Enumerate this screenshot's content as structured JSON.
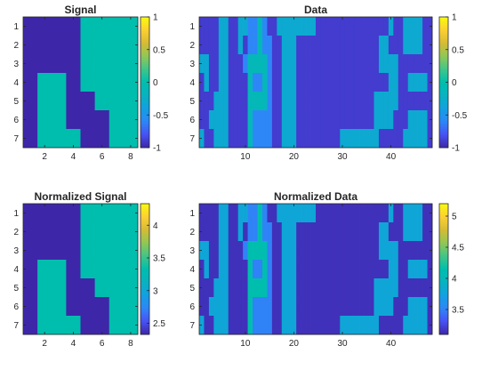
{
  "figure": {
    "background": "#ffffff",
    "colormap": "parula"
  },
  "chart_data": [
    {
      "type": "heatmap",
      "title": "Signal",
      "xticks": [
        2,
        4,
        6,
        8
      ],
      "yticks": [
        1,
        2,
        3,
        4,
        5,
        6,
        7
      ],
      "xlim": [
        0.5,
        8.5
      ],
      "ylim": [
        0.5,
        7.5
      ],
      "clim": [
        -1,
        1
      ],
      "colorbar_ticks": [
        1,
        0.5,
        0,
        -0.5,
        -1
      ],
      "z": [
        [
          -1,
          -1,
          -1,
          -1,
          0,
          0,
          0,
          0
        ],
        [
          -1,
          -1,
          -1,
          -1,
          0,
          0,
          0,
          0
        ],
        [
          -1,
          -1,
          -1,
          -1,
          0,
          0,
          0,
          0
        ],
        [
          -1,
          0,
          0,
          -1,
          0,
          0,
          0,
          0
        ],
        [
          -1,
          0,
          0,
          -1,
          -1,
          0,
          0,
          0
        ],
        [
          -1,
          0,
          0,
          -1,
          -1,
          -1,
          0,
          0
        ],
        [
          -1,
          0,
          0,
          0,
          -1,
          -1,
          0,
          0
        ]
      ]
    },
    {
      "type": "heatmap",
      "title": "Data",
      "xticks": [
        10,
        20,
        30,
        40
      ],
      "yticks": [
        1,
        2,
        3,
        4,
        5,
        6,
        7
      ],
      "xlim": [
        0.5,
        48.5
      ],
      "ylim": [
        0.5,
        7.5
      ],
      "clim": [
        -1,
        1
      ],
      "colorbar_ticks": [
        1,
        0.5,
        0,
        -0.5,
        -1
      ],
      "z": [
        [
          -0.9,
          -0.9,
          -0.9,
          -0.9,
          -0.3,
          -0.3,
          -0.9,
          -0.9,
          -0.3,
          -0.3,
          -0.6,
          -0.6,
          -0.1,
          -0.6,
          -0.9,
          -0.9,
          -0.3,
          -0.3,
          -0.3,
          -0.3,
          -0.3,
          -0.3,
          -0.3,
          -0.3,
          -0.9,
          -0.9,
          -0.9,
          -0.9,
          -0.9,
          -0.9,
          -0.9,
          -0.9,
          -0.9,
          -0.9,
          -0.9,
          -0.9,
          -0.9,
          -0.9,
          -0.9,
          -0.3,
          -0.9,
          -0.9,
          -0.3,
          -0.3,
          -0.3,
          -0.3,
          -0.9,
          -0.9
        ],
        [
          -0.9,
          -0.9,
          -0.9,
          -0.9,
          -0.3,
          -0.3,
          -0.9,
          -0.9,
          -0.3,
          -0.9,
          -0.6,
          -0.6,
          -0.1,
          -0.6,
          -0.6,
          -0.9,
          -0.9,
          -0.3,
          -0.3,
          -0.3,
          -0.9,
          -0.9,
          -0.9,
          -0.9,
          -0.9,
          -0.9,
          -0.9,
          -0.9,
          -0.9,
          -0.9,
          -0.9,
          -0.9,
          -0.9,
          -0.9,
          -0.9,
          -0.9,
          -0.9,
          -0.3,
          -0.3,
          -0.9,
          -0.9,
          -0.9,
          -0.3,
          -0.3,
          -0.3,
          -0.3,
          -0.9,
          -0.9
        ],
        [
          -0.3,
          -0.3,
          -0.9,
          -0.9,
          -0.3,
          -0.3,
          -0.9,
          -0.9,
          -0.9,
          -0.6,
          -0.1,
          -0.1,
          -0.1,
          -0.1,
          -0.6,
          -0.9,
          -0.9,
          -0.3,
          -0.3,
          -0.3,
          -0.9,
          -0.9,
          -0.9,
          -0.9,
          -0.9,
          -0.9,
          -0.9,
          -0.9,
          -0.9,
          -0.9,
          -0.9,
          -0.9,
          -0.9,
          -0.9,
          -0.9,
          -0.9,
          -0.9,
          -0.3,
          -0.3,
          -0.3,
          -0.3,
          -0.9,
          -0.9,
          -0.9,
          -0.9,
          -0.9,
          -0.9,
          -0.9
        ],
        [
          -0.9,
          -0.3,
          -0.9,
          -0.9,
          -0.3,
          -0.3,
          -0.9,
          -0.9,
          -0.9,
          -0.9,
          -0.1,
          -0.6,
          -0.6,
          -0.1,
          -0.6,
          -0.9,
          -0.9,
          -0.3,
          -0.3,
          -0.3,
          -0.9,
          -0.9,
          -0.9,
          -0.9,
          -0.9,
          -0.9,
          -0.9,
          -0.9,
          -0.9,
          -0.9,
          -0.9,
          -0.9,
          -0.9,
          -0.9,
          -0.9,
          -0.9,
          -0.9,
          -0.9,
          -0.9,
          -0.3,
          -0.3,
          -0.9,
          -0.9,
          -0.3,
          -0.3,
          -0.3,
          -0.3,
          -0.9
        ],
        [
          -0.9,
          -0.9,
          -0.9,
          -0.3,
          -0.3,
          -0.3,
          -0.9,
          -0.9,
          -0.9,
          -0.9,
          -0.1,
          -0.1,
          -0.1,
          -0.1,
          -0.6,
          -0.9,
          -0.9,
          -0.3,
          -0.3,
          -0.3,
          -0.9,
          -0.9,
          -0.9,
          -0.9,
          -0.9,
          -0.9,
          -0.9,
          -0.9,
          -0.9,
          -0.9,
          -0.9,
          -0.9,
          -0.9,
          -0.9,
          -0.9,
          -0.9,
          -0.3,
          -0.3,
          -0.3,
          -0.3,
          -0.3,
          -0.9,
          -0.9,
          -0.9,
          -0.9,
          -0.9,
          -0.9,
          -0.9
        ],
        [
          -0.9,
          -0.9,
          -0.3,
          -0.3,
          -0.3,
          -0.3,
          -0.9,
          -0.9,
          -0.9,
          -0.9,
          -0.1,
          -0.6,
          -0.6,
          -0.6,
          -0.6,
          -0.9,
          -0.9,
          -0.3,
          -0.3,
          -0.3,
          -0.9,
          -0.9,
          -0.9,
          -0.9,
          -0.9,
          -0.9,
          -0.9,
          -0.9,
          -0.9,
          -0.9,
          -0.9,
          -0.9,
          -0.9,
          -0.9,
          -0.9,
          -0.9,
          -0.3,
          -0.3,
          -0.3,
          -0.3,
          -0.9,
          -0.9,
          -0.9,
          -0.3,
          -0.3,
          -0.3,
          -0.3,
          -0.9
        ],
        [
          -0.3,
          -0.9,
          -0.9,
          -0.3,
          -0.3,
          -0.3,
          -0.9,
          -0.9,
          -0.9,
          -0.9,
          -0.1,
          -0.6,
          -0.6,
          -0.6,
          -0.6,
          -0.9,
          -0.9,
          -0.3,
          -0.3,
          -0.3,
          -0.9,
          -0.9,
          -0.9,
          -0.9,
          -0.9,
          -0.9,
          -0.9,
          -0.9,
          -0.9,
          -0.3,
          -0.3,
          -0.3,
          -0.3,
          -0.3,
          -0.3,
          -0.3,
          -0.3,
          -0.9,
          -0.9,
          -0.9,
          -0.9,
          -0.9,
          -0.3,
          -0.3,
          -0.3,
          -0.3,
          -0.3,
          -0.9
        ]
      ]
    },
    {
      "type": "heatmap",
      "title": "Normalized Signal",
      "xticks": [
        2,
        4,
        6,
        8
      ],
      "yticks": [
        1,
        2,
        3,
        4,
        5,
        6,
        7
      ],
      "xlim": [
        0.5,
        8.5
      ],
      "ylim": [
        0.5,
        7.5
      ],
      "clim": [
        2.33,
        4.33
      ],
      "colorbar_ticks": [
        4,
        3.5,
        3,
        2.5
      ],
      "z": [
        [
          2.33,
          2.33,
          2.33,
          2.33,
          3.33,
          3.33,
          3.33,
          3.33
        ],
        [
          2.33,
          2.33,
          2.33,
          2.33,
          3.33,
          3.33,
          3.33,
          3.33
        ],
        [
          2.33,
          2.33,
          2.33,
          2.33,
          3.33,
          3.33,
          3.33,
          3.33
        ],
        [
          2.33,
          3.33,
          3.33,
          2.33,
          3.33,
          3.33,
          3.33,
          3.33
        ],
        [
          2.33,
          3.33,
          3.33,
          2.33,
          2.33,
          3.33,
          3.33,
          3.33
        ],
        [
          2.33,
          3.33,
          3.33,
          2.33,
          2.33,
          2.33,
          3.33,
          3.33
        ],
        [
          2.33,
          3.33,
          3.33,
          3.33,
          2.33,
          2.33,
          3.33,
          3.33
        ]
      ]
    },
    {
      "type": "heatmap",
      "title": "Normalized Data",
      "xticks": [
        10,
        20,
        30,
        40
      ],
      "yticks": [
        1,
        2,
        3,
        4,
        5,
        6,
        7
      ],
      "xlim": [
        0.5,
        48.5
      ],
      "ylim": [
        0.5,
        7.5
      ],
      "clim": [
        3.1,
        5.2
      ],
      "colorbar_ticks": [
        5,
        4.5,
        4,
        3.5
      ],
      "z": [
        [
          3.15,
          3.15,
          3.15,
          3.15,
          3.8,
          3.8,
          3.15,
          3.15,
          3.8,
          3.8,
          3.5,
          3.5,
          4.15,
          3.5,
          3.15,
          3.15,
          3.8,
          3.8,
          3.8,
          3.8,
          3.8,
          3.8,
          3.8,
          3.8,
          3.15,
          3.15,
          3.15,
          3.15,
          3.15,
          3.15,
          3.15,
          3.15,
          3.15,
          3.15,
          3.15,
          3.15,
          3.15,
          3.15,
          3.15,
          3.8,
          3.15,
          3.15,
          3.8,
          3.8,
          3.8,
          3.8,
          3.15,
          3.15
        ],
        [
          3.15,
          3.15,
          3.15,
          3.15,
          3.8,
          3.8,
          3.15,
          3.15,
          3.8,
          3.15,
          3.5,
          3.5,
          4.15,
          3.5,
          3.5,
          3.15,
          3.15,
          3.8,
          3.8,
          3.8,
          3.15,
          3.15,
          3.15,
          3.15,
          3.15,
          3.15,
          3.15,
          3.15,
          3.15,
          3.15,
          3.15,
          3.15,
          3.15,
          3.15,
          3.15,
          3.15,
          3.15,
          3.8,
          3.8,
          3.15,
          3.15,
          3.15,
          3.8,
          3.8,
          3.8,
          3.8,
          3.15,
          3.15
        ],
        [
          3.8,
          3.8,
          3.15,
          3.15,
          3.8,
          3.8,
          3.15,
          3.15,
          3.15,
          3.5,
          4.15,
          4.15,
          4.15,
          4.15,
          3.5,
          3.15,
          3.15,
          3.8,
          3.8,
          3.8,
          3.15,
          3.15,
          3.15,
          3.15,
          3.15,
          3.15,
          3.15,
          3.15,
          3.15,
          3.15,
          3.15,
          3.15,
          3.15,
          3.15,
          3.15,
          3.15,
          3.15,
          3.8,
          3.8,
          3.8,
          3.8,
          3.15,
          3.15,
          3.15,
          3.15,
          3.15,
          3.15,
          3.15
        ],
        [
          3.15,
          3.8,
          3.15,
          3.15,
          3.8,
          3.8,
          3.15,
          3.15,
          3.15,
          3.15,
          4.15,
          3.5,
          3.5,
          4.15,
          3.5,
          3.15,
          3.15,
          3.8,
          3.8,
          3.8,
          3.15,
          3.15,
          3.15,
          3.15,
          3.15,
          3.15,
          3.15,
          3.15,
          3.15,
          3.15,
          3.15,
          3.15,
          3.15,
          3.15,
          3.15,
          3.15,
          3.15,
          3.15,
          3.15,
          3.8,
          3.8,
          3.15,
          3.15,
          3.8,
          3.8,
          3.8,
          3.8,
          3.15
        ],
        [
          3.15,
          3.15,
          3.15,
          3.8,
          3.8,
          3.8,
          3.15,
          3.15,
          3.15,
          3.15,
          4.15,
          4.15,
          4.15,
          4.15,
          3.5,
          3.15,
          3.15,
          3.8,
          3.8,
          3.8,
          3.15,
          3.15,
          3.15,
          3.15,
          3.15,
          3.15,
          3.15,
          3.15,
          3.15,
          3.15,
          3.15,
          3.15,
          3.15,
          3.15,
          3.15,
          3.15,
          3.8,
          3.8,
          3.8,
          3.8,
          3.8,
          3.15,
          3.15,
          3.15,
          3.15,
          3.15,
          3.15,
          3.15
        ],
        [
          3.15,
          3.15,
          3.8,
          3.8,
          3.8,
          3.8,
          3.15,
          3.15,
          3.15,
          3.15,
          4.15,
          3.5,
          3.5,
          3.5,
          3.5,
          3.15,
          3.15,
          3.8,
          3.8,
          3.8,
          3.15,
          3.15,
          3.15,
          3.15,
          3.15,
          3.15,
          3.15,
          3.15,
          3.15,
          3.15,
          3.15,
          3.15,
          3.15,
          3.15,
          3.15,
          3.15,
          3.8,
          3.8,
          3.8,
          3.8,
          3.15,
          3.15,
          3.15,
          3.8,
          3.8,
          3.8,
          3.8,
          3.15
        ],
        [
          3.8,
          3.15,
          3.15,
          3.8,
          3.8,
          3.8,
          3.15,
          3.15,
          3.15,
          3.15,
          4.15,
          3.5,
          3.5,
          3.5,
          3.5,
          3.15,
          3.15,
          3.8,
          3.8,
          3.8,
          3.15,
          3.15,
          3.15,
          3.15,
          3.15,
          3.15,
          3.15,
          3.15,
          3.15,
          3.8,
          3.8,
          3.8,
          3.8,
          3.8,
          3.8,
          3.8,
          3.8,
          3.15,
          3.15,
          3.15,
          3.15,
          3.15,
          3.8,
          3.8,
          3.8,
          3.8,
          3.8,
          3.15
        ]
      ]
    }
  ]
}
